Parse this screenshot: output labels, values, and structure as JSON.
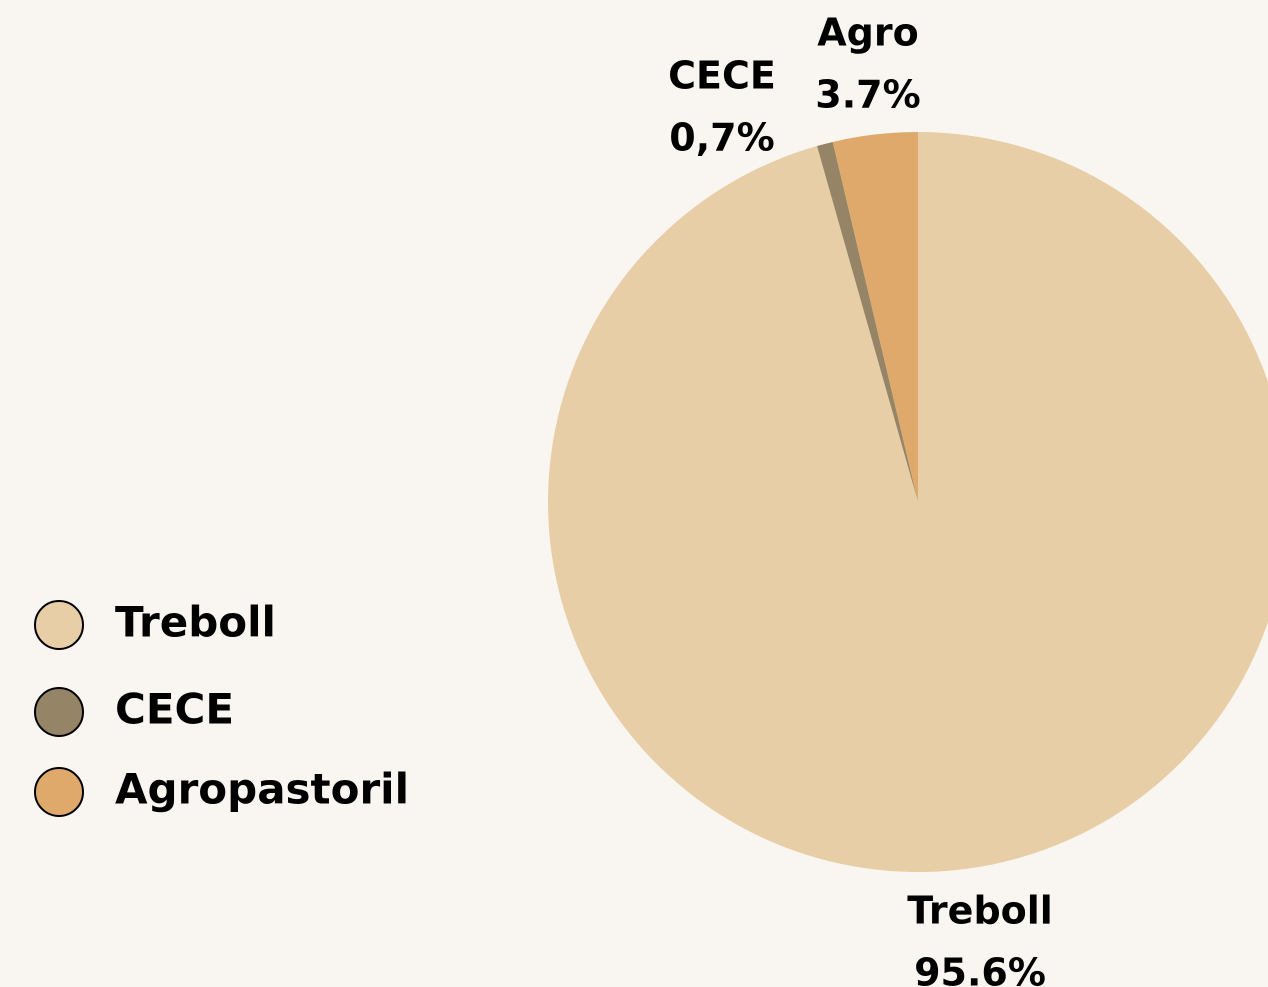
{
  "chart_data": {
    "type": "pie",
    "categories": [
      "Treboll",
      "CECE",
      "Agropastoril"
    ],
    "slice_labels": [
      "Treboll",
      "CECE",
      "Agro"
    ],
    "values": [
      95.6,
      0.7,
      3.7
    ],
    "value_labels": [
      "95.6%",
      "0,7%",
      "3.7%"
    ],
    "colors": [
      "#e8cea6",
      "#958566",
      "#dfa96b"
    ],
    "legend": "left"
  }
}
